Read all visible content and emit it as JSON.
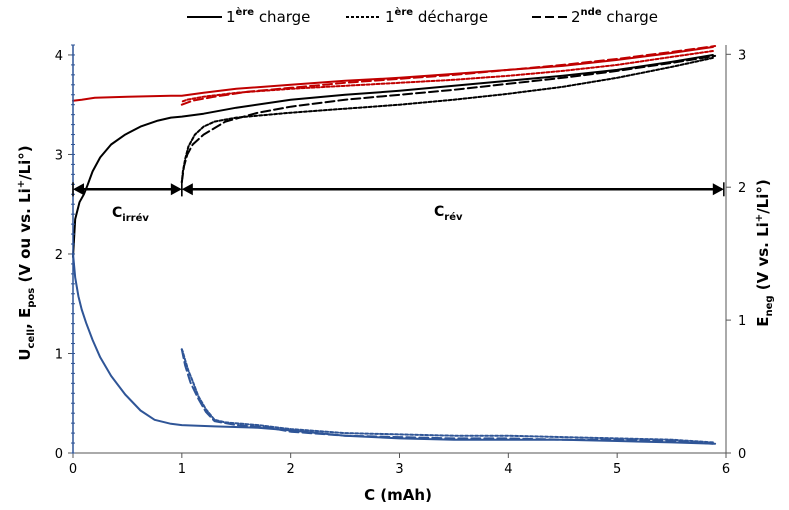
{
  "chart_data": {
    "type": "line",
    "xlabel": "C (mAh)",
    "ylabel_left": {
      "main": "U",
      "sub1": "cell",
      "mid": ", E",
      "sub2": "pos",
      "rest": " (V ou vs. Li",
      "sup": "+",
      "end": "/Li°)"
    },
    "ylabel_right": {
      "main": "E",
      "sub": "neg",
      "rest": " (V vs. Li",
      "sup": "+",
      "end": "/Li°)"
    },
    "xlim": [
      0,
      6
    ],
    "ylim_left": [
      0,
      4.1
    ],
    "ylim_right": [
      0,
      3.07
    ],
    "x_ticks": [
      "0",
      "1",
      "2",
      "3",
      "4",
      "5",
      "6"
    ],
    "y_left_ticks": [
      "0",
      "1",
      "2",
      "3",
      "4"
    ],
    "y_right_ticks": [
      "0",
      "1",
      "2",
      "3"
    ],
    "legend": [
      {
        "pre": "1",
        "sup": "ère",
        "post": " charge",
        "style": "solid"
      },
      {
        "pre": "1",
        "sup": "ère",
        "post": " décharge",
        "style": "dotted"
      },
      {
        "pre": "2",
        "sup": "nde",
        "post": " charge",
        "style": "dashed"
      }
    ],
    "annotations": [
      {
        "main": "C",
        "sub": "irrév"
      },
      {
        "main": "C",
        "sub": "rév"
      }
    ],
    "arrows": [
      {
        "from": 0,
        "to": 1.0,
        "y": 2.65
      },
      {
        "from": 1.0,
        "to": 5.98,
        "y": 2.65
      }
    ],
    "colors": {
      "cell": "#000000",
      "pos": "#c00000",
      "neg": "#2f5597"
    },
    "series": [
      {
        "group": "cell",
        "style": "solid",
        "axis": "left",
        "points": [
          [
            0.0,
            1.97
          ],
          [
            0.02,
            2.35
          ],
          [
            0.06,
            2.52
          ],
          [
            0.1,
            2.6
          ],
          [
            0.13,
            2.68
          ],
          [
            0.18,
            2.83
          ],
          [
            0.25,
            2.97
          ],
          [
            0.35,
            3.1
          ],
          [
            0.48,
            3.2
          ],
          [
            0.62,
            3.28
          ],
          [
            0.78,
            3.34
          ],
          [
            0.9,
            3.37
          ],
          [
            1.0,
            3.38
          ],
          [
            1.2,
            3.41
          ],
          [
            1.5,
            3.47
          ],
          [
            2.0,
            3.55
          ],
          [
            2.5,
            3.6
          ],
          [
            3.0,
            3.64
          ],
          [
            3.5,
            3.69
          ],
          [
            4.0,
            3.74
          ],
          [
            4.5,
            3.79
          ],
          [
            5.0,
            3.85
          ],
          [
            5.5,
            3.93
          ],
          [
            5.88,
            4.0
          ]
        ]
      },
      {
        "group": "cell",
        "style": "dotted",
        "axis": "left",
        "points": [
          [
            5.88,
            3.97
          ],
          [
            5.5,
            3.88
          ],
          [
            5.0,
            3.77
          ],
          [
            4.5,
            3.68
          ],
          [
            4.0,
            3.61
          ],
          [
            3.5,
            3.55
          ],
          [
            3.0,
            3.5
          ],
          [
            2.5,
            3.46
          ],
          [
            2.0,
            3.42
          ],
          [
            1.5,
            3.37
          ],
          [
            1.3,
            3.33
          ],
          [
            1.2,
            3.28
          ],
          [
            1.12,
            3.2
          ],
          [
            1.06,
            3.08
          ],
          [
            1.03,
            2.95
          ],
          [
            1.01,
            2.83
          ],
          [
            1.0,
            2.72
          ]
        ]
      },
      {
        "group": "cell",
        "style": "dashed",
        "axis": "left",
        "points": [
          [
            1.0,
            2.72
          ],
          [
            1.02,
            2.88
          ],
          [
            1.05,
            3.0
          ],
          [
            1.1,
            3.1
          ],
          [
            1.2,
            3.2
          ],
          [
            1.4,
            3.33
          ],
          [
            1.7,
            3.42
          ],
          [
            2.0,
            3.48
          ],
          [
            2.5,
            3.55
          ],
          [
            3.0,
            3.6
          ],
          [
            3.5,
            3.65
          ],
          [
            4.0,
            3.71
          ],
          [
            4.5,
            3.77
          ],
          [
            5.0,
            3.84
          ],
          [
            5.5,
            3.92
          ],
          [
            5.9,
            3.99
          ]
        ]
      },
      {
        "group": "pos",
        "style": "solid",
        "axis": "left",
        "points": [
          [
            0.0,
            3.54
          ],
          [
            0.08,
            3.55
          ],
          [
            0.2,
            3.57
          ],
          [
            0.5,
            3.58
          ],
          [
            0.9,
            3.59
          ],
          [
            1.0,
            3.59
          ],
          [
            1.2,
            3.62
          ],
          [
            1.5,
            3.66
          ],
          [
            2.0,
            3.7
          ],
          [
            2.5,
            3.74
          ],
          [
            3.0,
            3.77
          ],
          [
            3.5,
            3.81
          ],
          [
            4.0,
            3.85
          ],
          [
            4.5,
            3.89
          ],
          [
            5.0,
            3.95
          ],
          [
            5.5,
            4.02
          ],
          [
            5.88,
            4.08
          ]
        ]
      },
      {
        "group": "pos",
        "style": "dotted",
        "axis": "left",
        "points": [
          [
            5.88,
            4.04
          ],
          [
            5.5,
            3.98
          ],
          [
            5.0,
            3.9
          ],
          [
            4.5,
            3.84
          ],
          [
            4.0,
            3.79
          ],
          [
            3.5,
            3.75
          ],
          [
            3.0,
            3.72
          ],
          [
            2.5,
            3.69
          ],
          [
            2.0,
            3.66
          ],
          [
            1.5,
            3.62
          ],
          [
            1.2,
            3.58
          ],
          [
            1.05,
            3.55
          ],
          [
            1.0,
            3.53
          ]
        ]
      },
      {
        "group": "pos",
        "style": "dashed",
        "axis": "left",
        "points": [
          [
            1.0,
            3.5
          ],
          [
            1.1,
            3.54
          ],
          [
            1.3,
            3.58
          ],
          [
            1.6,
            3.63
          ],
          [
            2.0,
            3.67
          ],
          [
            2.5,
            3.72
          ],
          [
            3.0,
            3.76
          ],
          [
            3.5,
            3.8
          ],
          [
            4.0,
            3.85
          ],
          [
            4.5,
            3.9
          ],
          [
            5.0,
            3.96
          ],
          [
            5.5,
            4.03
          ],
          [
            5.9,
            4.09
          ]
        ]
      },
      {
        "group": "neg",
        "style": "solid",
        "axis": "right",
        "points": [
          [
            0.0,
            1.5
          ],
          [
            0.02,
            1.32
          ],
          [
            0.05,
            1.18
          ],
          [
            0.08,
            1.08
          ],
          [
            0.12,
            0.98
          ],
          [
            0.18,
            0.85
          ],
          [
            0.25,
            0.72
          ],
          [
            0.35,
            0.58
          ],
          [
            0.48,
            0.44
          ],
          [
            0.62,
            0.32
          ],
          [
            0.75,
            0.25
          ],
          [
            0.9,
            0.22
          ],
          [
            1.0,
            0.21
          ],
          [
            1.3,
            0.2
          ],
          [
            1.7,
            0.19
          ],
          [
            2.0,
            0.17
          ],
          [
            2.5,
            0.13
          ],
          [
            3.0,
            0.11
          ],
          [
            3.5,
            0.1
          ],
          [
            4.0,
            0.1
          ],
          [
            4.5,
            0.1
          ],
          [
            5.0,
            0.09
          ],
          [
            5.5,
            0.08
          ],
          [
            5.9,
            0.07
          ]
        ]
      },
      {
        "group": "neg",
        "style": "dotted",
        "axis": "right",
        "points": [
          [
            5.88,
            0.08
          ],
          [
            5.5,
            0.1
          ],
          [
            5.0,
            0.11
          ],
          [
            4.5,
            0.12
          ],
          [
            4.0,
            0.13
          ],
          [
            3.5,
            0.13
          ],
          [
            3.0,
            0.14
          ],
          [
            2.5,
            0.15
          ],
          [
            2.0,
            0.18
          ],
          [
            1.7,
            0.21
          ],
          [
            1.4,
            0.23
          ],
          [
            1.3,
            0.25
          ],
          [
            1.22,
            0.33
          ],
          [
            1.15,
            0.43
          ],
          [
            1.1,
            0.54
          ],
          [
            1.06,
            0.62
          ],
          [
            1.03,
            0.7
          ],
          [
            1.01,
            0.76
          ],
          [
            1.0,
            0.78
          ]
        ]
      },
      {
        "group": "neg",
        "style": "dashed",
        "axis": "right",
        "points": [
          [
            1.0,
            0.78
          ],
          [
            1.03,
            0.66
          ],
          [
            1.08,
            0.53
          ],
          [
            1.15,
            0.41
          ],
          [
            1.22,
            0.31
          ],
          [
            1.3,
            0.24
          ],
          [
            1.5,
            0.21
          ],
          [
            1.8,
            0.19
          ],
          [
            2.0,
            0.16
          ],
          [
            2.5,
            0.13
          ],
          [
            3.0,
            0.12
          ],
          [
            3.5,
            0.11
          ],
          [
            4.0,
            0.11
          ],
          [
            4.5,
            0.1
          ],
          [
            5.0,
            0.1
          ],
          [
            5.5,
            0.09
          ],
          [
            5.88,
            0.07
          ]
        ]
      }
    ]
  }
}
